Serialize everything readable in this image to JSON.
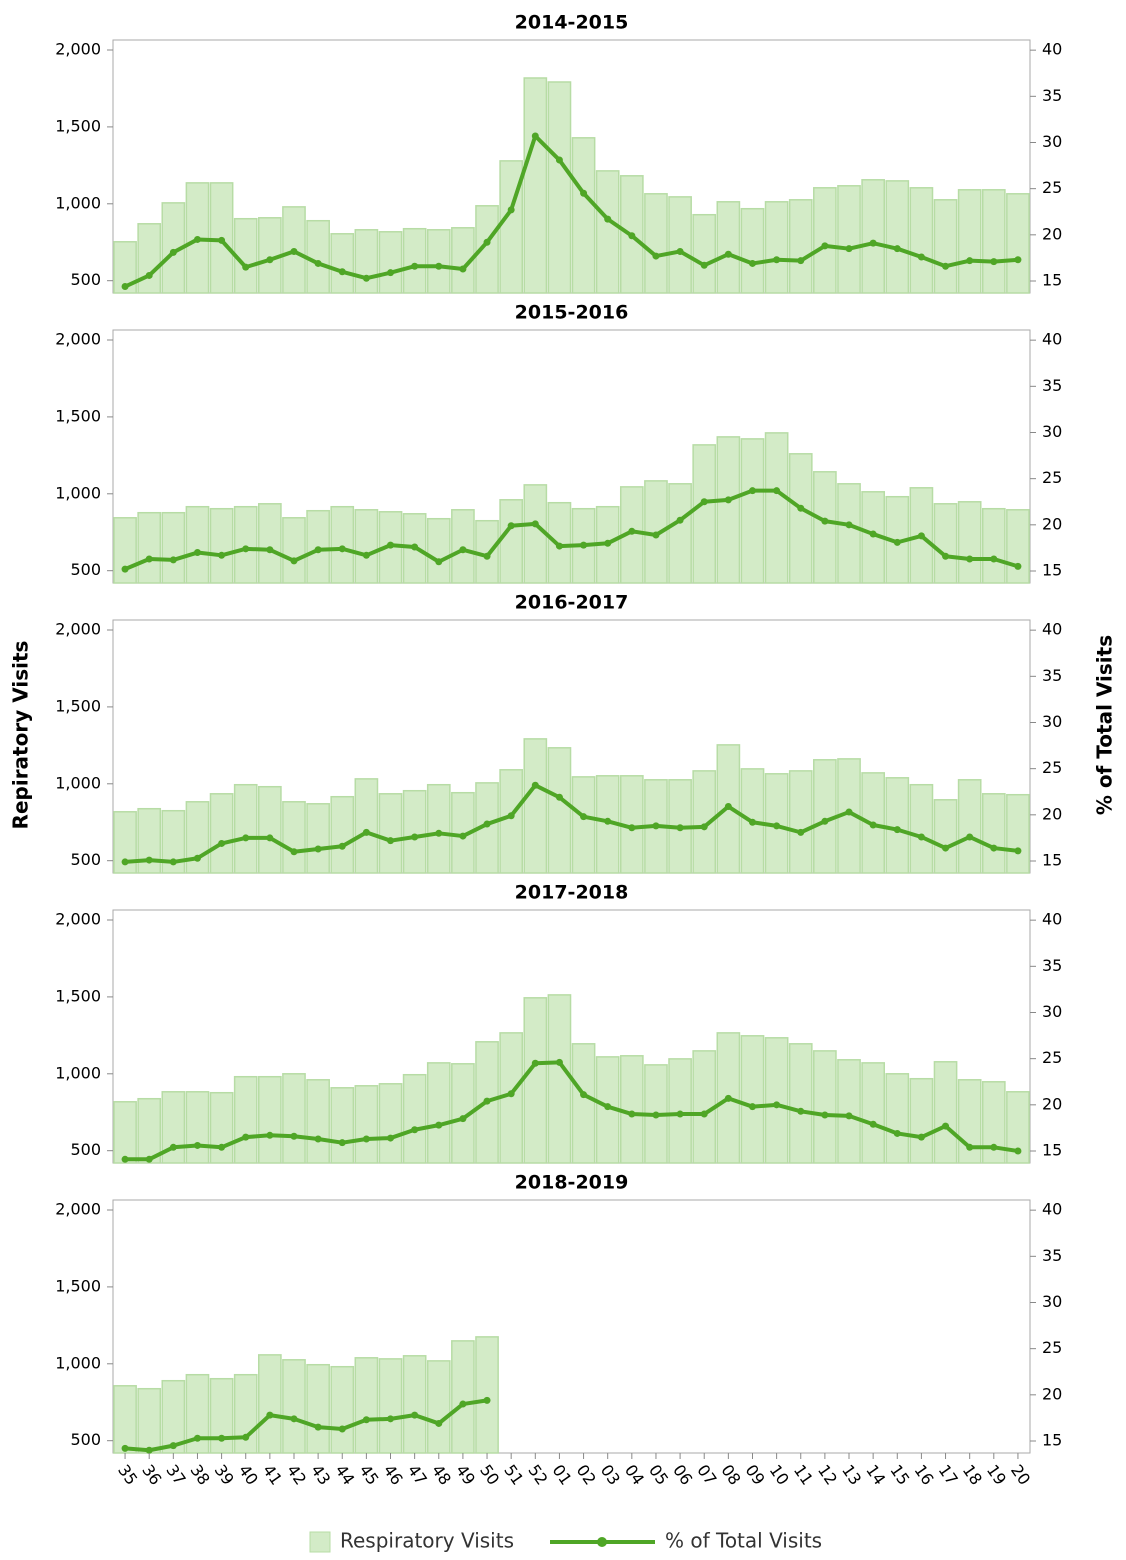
{
  "chart_data": {
    "type": "bar-line",
    "y_label": "Repiratory Visits",
    "y2_label": "% of Total Visits",
    "categories": [
      "35",
      "36",
      "37",
      "38",
      "39",
      "40",
      "41",
      "42",
      "43",
      "44",
      "45",
      "46",
      "47",
      "48",
      "49",
      "50",
      "51",
      "52",
      "01",
      "02",
      "03",
      "04",
      "05",
      "06",
      "07",
      "08",
      "09",
      "10",
      "11",
      "12",
      "13",
      "14",
      "15",
      "16",
      "17",
      "18",
      "19",
      "20"
    ],
    "ylim": [
      420,
      2065
    ],
    "yticks": [
      500,
      {
        "value": 1000,
        "label": "1,000"
      },
      {
        "value": 1500,
        "label": "1,500"
      },
      {
        "value": 2000,
        "label": "2,000"
      }
    ],
    "y2lim": [
      13.7,
      41.1
    ],
    "y2ticks": [
      15,
      20,
      25,
      30,
      35,
      40
    ],
    "series": [
      {
        "name": "Respiratory Visits",
        "color": "#d3ebc7",
        "type": "bar"
      },
      {
        "name": "% of Total Visits",
        "color": "#4fa626",
        "type": "line"
      }
    ],
    "panels": [
      {
        "title": "2014-2015",
        "series": [
          {
            "values": [
              753,
              870,
              1006,
              1136,
              1136,
              903,
              909,
              980,
              890,
              805,
              831,
              818,
              838,
              831,
              844,
              987,
              1279,
              1818,
              1792,
              1429,
              1214,
              1182,
              1065,
              1045,
              929,
              1013,
              968,
              1013,
              1026,
              1104,
              1117,
              1156,
              1149,
              1104,
              1026,
              1091,
              1091,
              1065
            ]
          },
          {
            "axis": "y2",
            "values": [
              14.4,
              15.6,
              18.1,
              19.5,
              19.4,
              16.5,
              17.3,
              18.2,
              16.9,
              16.0,
              15.3,
              15.9,
              16.6,
              16.6,
              16.3,
              19.2,
              22.7,
              30.7,
              28.1,
              24.5,
              21.7,
              19.9,
              17.7,
              18.2,
              16.7,
              17.9,
              16.9,
              17.3,
              17.2,
              18.8,
              18.5,
              19.1,
              18.5,
              17.6,
              16.6,
              17.2,
              17.1,
              17.3
            ]
          }
        ]
      },
      {
        "title": "2015-2016",
        "series": [
          {
            "values": [
              844,
              877,
              877,
              916,
              903,
              916,
              935,
              844,
              890,
              916,
              896,
              883,
              870,
              838,
              896,
              825,
              961,
              1058,
              942,
              903,
              916,
              1045,
              1084,
              1065,
              1318,
              1370,
              1357,
              1396,
              1260,
              1143,
              1065,
              1013,
              981,
              1039,
              935,
              948,
              903,
              896
            ]
          },
          {
            "axis": "y2",
            "values": [
              15.2,
              16.3,
              16.2,
              17.0,
              16.7,
              17.4,
              17.3,
              16.1,
              17.3,
              17.4,
              16.7,
              17.8,
              17.6,
              16.0,
              17.3,
              16.6,
              19.9,
              20.1,
              17.7,
              17.8,
              18.0,
              19.3,
              18.9,
              20.5,
              22.5,
              22.7,
              23.7,
              23.7,
              21.8,
              20.4,
              20.0,
              19.0,
              18.1,
              18.8,
              16.6,
              16.3,
              16.3,
              15.5
            ]
          }
        ]
      },
      {
        "title": "2016-2017",
        "series": [
          {
            "values": [
              818,
              838,
              825,
              883,
              935,
              994,
              981,
              883,
              870,
              916,
              1032,
              935,
              955,
              994,
              942,
              1006,
              1091,
              1292,
              1234,
              1045,
              1052,
              1052,
              1026,
              1026,
              1084,
              1253,
              1097,
              1065,
              1084,
              1156,
              1162,
              1071,
              1039,
              994,
              896,
              1026,
              935,
              929
            ]
          },
          {
            "axis": "y2",
            "values": [
              14.9,
              15.1,
              14.9,
              15.3,
              16.9,
              17.5,
              17.5,
              16.0,
              16.3,
              16.6,
              18.1,
              17.2,
              17.6,
              18.0,
              17.7,
              19.0,
              19.9,
              23.2,
              21.9,
              19.8,
              19.3,
              18.6,
              18.8,
              18.6,
              18.7,
              20.9,
              19.2,
              18.8,
              18.1,
              19.3,
              20.3,
              18.9,
              18.4,
              17.6,
              16.4,
              17.6,
              16.4,
              16.1
            ]
          }
        ]
      },
      {
        "title": "2017-2018",
        "series": [
          {
            "values": [
              818,
              838,
              883,
              883,
              877,
              981,
              981,
              1000,
              961,
              909,
              922,
              935,
              994,
              1071,
              1065,
              1208,
              1266,
              1494,
              1513,
              1195,
              1110,
              1117,
              1058,
              1097,
              1149,
              1266,
              1247,
              1234,
              1195,
              1149,
              1091,
              1071,
              1000,
              968,
              1078,
              961,
              948,
              883
            ]
          },
          {
            "axis": "y2",
            "values": [
              14.1,
              14.1,
              15.4,
              15.6,
              15.4,
              16.5,
              16.7,
              16.6,
              16.3,
              15.9,
              16.3,
              16.4,
              17.3,
              17.8,
              18.5,
              20.4,
              21.2,
              24.5,
              24.6,
              21.1,
              19.8,
              19.0,
              18.9,
              19.0,
              19.0,
              20.7,
              19.8,
              20.0,
              19.3,
              18.9,
              18.8,
              17.9,
              16.9,
              16.5,
              17.7,
              15.4,
              15.4,
              15.0
            ]
          }
        ]
      },
      {
        "title": "2018-2019",
        "series": [
          {
            "values": [
              857,
              838,
              890,
              929,
              903,
              929,
              1058,
              1026,
              994,
              981,
              1039,
              1032,
              1052,
              1019,
              1149,
              1175,
              null,
              null,
              null,
              null,
              null,
              null,
              null,
              null,
              null,
              null,
              null,
              null,
              null,
              null,
              null,
              null,
              null,
              null,
              null,
              null,
              null,
              null
            ]
          },
          {
            "axis": "y2",
            "values": [
              14.2,
              14.0,
              14.5,
              15.3,
              15.3,
              15.4,
              17.8,
              17.4,
              16.5,
              16.3,
              17.3,
              17.4,
              17.8,
              16.9,
              19.0,
              19.4,
              null,
              null,
              null,
              null,
              null,
              null,
              null,
              null,
              null,
              null,
              null,
              null,
              null,
              null,
              null,
              null,
              null,
              null,
              null,
              null,
              null,
              null
            ]
          }
        ]
      }
    ]
  }
}
